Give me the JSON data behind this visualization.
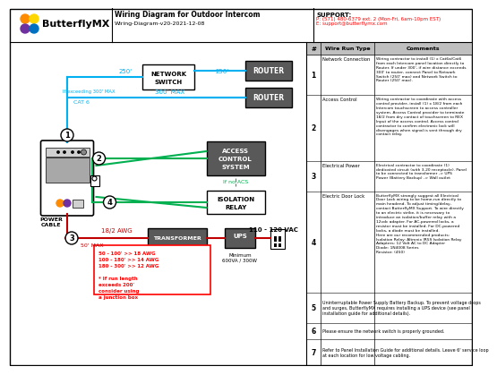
{
  "title": "Wiring Diagram for Outdoor Intercom",
  "subtitle": "Wiring-Diagram-v20-2021-12-08",
  "support_label": "SUPPORT:",
  "support_phone": "P: (571) 480-6379 ext. 2 (Mon-Fri, 6am-10pm EST)",
  "support_email": "E: support@butterflymx.com",
  "bg_color": "#ffffff",
  "cyan_color": "#00b0f0",
  "green_color": "#00b050",
  "red_color": "#ff0000",
  "dark_red_color": "#c00000",
  "gray_box": "#595959",
  "light_gray": "#d0d0d0",
  "table_header_bg": "#bfbfbf",
  "table_rows": [
    {
      "num": "1",
      "type": "Network Connection",
      "comment": "Wiring contractor to install (1) x Cat6a/Cat6\nfrom each Intercom panel location directly to\nRouter. If under 300', if wire distance exceeds\n300' to router, connect Panel to Network\nSwitch (250' max) and Network Switch to\nRouter (250' max)."
    },
    {
      "num": "2",
      "type": "Access Control",
      "comment": "Wiring contractor to coordinate with access\ncontrol provider, install (1) x 18/2 from each\nIntercom touchscreen to access controller\nsystem. Access Control provider to terminate\n18/2 from dry contact of touchscreen to REX\nInput of the access control. Access control\ncontractor to confirm electronic lock will\ndisengages when signal is sent through dry\ncontact relay."
    },
    {
      "num": "3",
      "type": "Electrical Power",
      "comment": "Electrical contractor to coordinate (1)\ndedicated circuit (with 3-20 receptacle). Panel\nto be connected to transformer -> UPS\nPower (Battery Backup) -> Wall outlet"
    },
    {
      "num": "4",
      "type": "Electric Door Lock",
      "comment": "ButterflyMX strongly suggest all Electrical\nDoor Lock wiring to be home-run directly to\nmain headend. To adjust timing/delay,\ncontact ButterflyMX Support. To wire directly\nto an electric strike, it is necessary to\nintroduce an isolation/buffer relay with a\n12vdc adapter. For AC-powered locks, a\nresistor must be installed. For DC-powered\nlocks, a diode must be installed.\nHere are our recommended products:\nIsolation Relay: Altronix IR5S Isolation Relay\nAdapters: 12 Volt AC to DC Adapter\nDiode: 1N4008 Series\nResistor: (450)"
    },
    {
      "num": "5",
      "type": "Uninterruptable Power Supply Battery Backup. To prevent voltage drops\nand surges, ButterflyMX requires installing a UPS device (see panel\ninstallation guide for additional details).",
      "comment": ""
    },
    {
      "num": "6",
      "type": "Please ensure the network switch is properly grounded.",
      "comment": ""
    },
    {
      "num": "7",
      "type": "Refer to Panel Installation Guide for additional details. Leave 6' service loop\nat each location for low voltage cabling.",
      "comment": ""
    }
  ]
}
